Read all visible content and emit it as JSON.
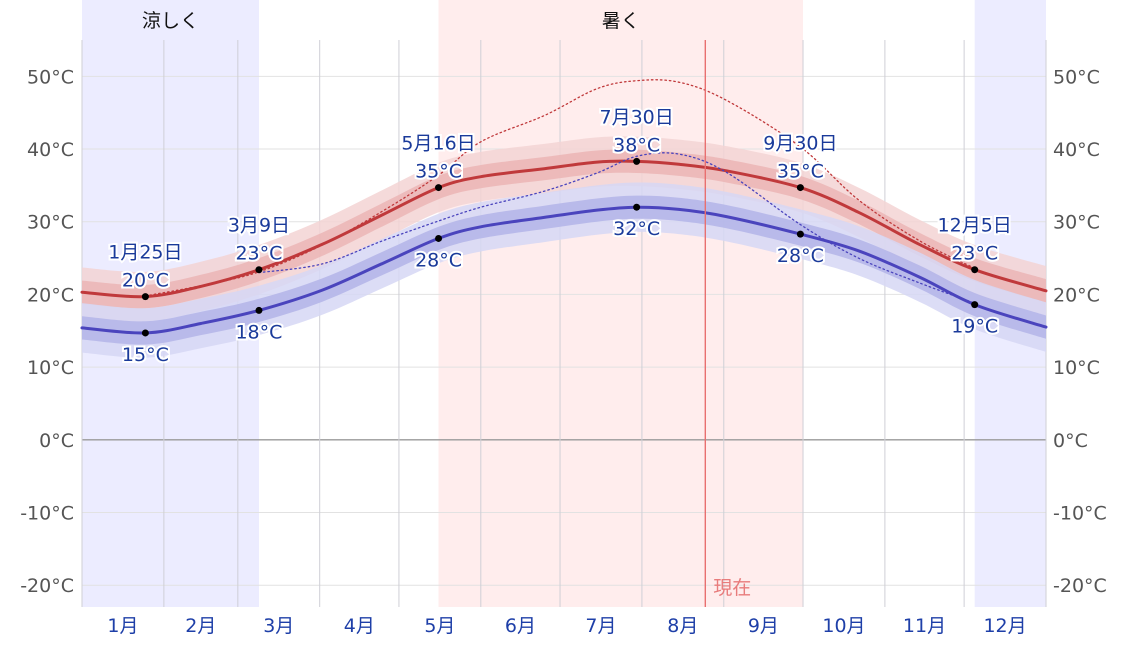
{
  "chart_data": {
    "type": "line",
    "x_unit": "day_of_year",
    "ylim": [
      -23,
      55
    ],
    "y_ticks": [
      -20,
      -10,
      0,
      10,
      20,
      30,
      40,
      50
    ],
    "y_tick_suffix": "°C",
    "months": [
      "1月",
      "2月",
      "3月",
      "4月",
      "5月",
      "6月",
      "7月",
      "8月",
      "9月",
      "10月",
      "11月",
      "12月"
    ],
    "seasons": [
      {
        "label": "涼しく",
        "start": 1,
        "end": 68,
        "color": "#ececff"
      },
      {
        "label": "",
        "start": 339,
        "end": 366,
        "color": "#ececff"
      },
      {
        "label": "暑く",
        "start": 136,
        "end": 274,
        "color": "#ffeded"
      }
    ],
    "now": {
      "label": "現在",
      "x": 237,
      "color": "#e87070"
    },
    "series": [
      {
        "name": "high",
        "color": "#c0393b",
        "band_inner": "#ebb5b5",
        "band_outer": "#f3d3d3",
        "x": [
          1,
          25,
          46,
          68,
          92,
          115,
          136,
          152,
          176,
          196,
          211,
          227,
          245,
          273,
          295,
          318,
          339,
          366
        ],
        "values": [
          20.3,
          19.7,
          21.1,
          23.4,
          26.9,
          31.0,
          34.7,
          36.2,
          37.3,
          38.2,
          38.3,
          37.9,
          37.0,
          34.7,
          31.3,
          26.9,
          23.4,
          20.5
        ]
      },
      {
        "name": "low",
        "color": "#4a44bd",
        "band_inner": "#b3b4e8",
        "band_outer": "#d6d7f4",
        "x": [
          1,
          25,
          46,
          68,
          92,
          115,
          136,
          152,
          176,
          196,
          211,
          227,
          245,
          273,
          295,
          318,
          339,
          366
        ],
        "values": [
          15.4,
          14.7,
          16.0,
          17.8,
          20.6,
          24.3,
          27.7,
          29.3,
          30.6,
          31.6,
          32.0,
          31.7,
          30.7,
          28.3,
          26.0,
          22.4,
          18.6,
          15.5
        ]
      },
      {
        "name": "record_high",
        "color": "#c0393b",
        "dotted": true,
        "x": [
          25,
          46,
          68,
          92,
          115,
          136,
          152,
          176,
          196,
          211,
          227,
          245,
          273,
          295,
          318,
          339
        ],
        "values": [
          19.8,
          21.2,
          23.1,
          26.8,
          31.5,
          36.4,
          41.0,
          44.6,
          48.3,
          49.4,
          49.2,
          46.7,
          40.3,
          33.0,
          27.4,
          23.6
        ]
      },
      {
        "name": "record_low",
        "color": "#4a44bd",
        "dotted": true,
        "x": [
          68,
          92,
          115,
          136,
          152,
          176,
          196,
          211,
          227,
          245,
          273,
          295,
          318,
          339
        ],
        "values": [
          23.0,
          24.2,
          27.4,
          30.1,
          32.0,
          34.2,
          36.7,
          39.0,
          39.3,
          36.8,
          29.6,
          25.0,
          21.6,
          18.8
        ]
      }
    ],
    "annotations": [
      {
        "x": 25,
        "y": 19.7,
        "lines": [
          "1月25日",
          "20°C"
        ],
        "pos": "above"
      },
      {
        "x": 25,
        "y": 14.7,
        "lines": [
          "15°C"
        ],
        "pos": "below"
      },
      {
        "x": 68,
        "y": 23.4,
        "lines": [
          "3月9日",
          "23°C"
        ],
        "pos": "above"
      },
      {
        "x": 68,
        "y": 17.8,
        "lines": [
          "18°C"
        ],
        "pos": "below"
      },
      {
        "x": 136,
        "y": 34.7,
        "lines": [
          "5月16日",
          "35°C"
        ],
        "pos": "above"
      },
      {
        "x": 136,
        "y": 27.7,
        "lines": [
          "28°C"
        ],
        "pos": "below"
      },
      {
        "x": 211,
        "y": 38.3,
        "lines": [
          "7月30日",
          "38°C"
        ],
        "pos": "above"
      },
      {
        "x": 211,
        "y": 32.0,
        "lines": [
          "32°C"
        ],
        "pos": "below"
      },
      {
        "x": 273,
        "y": 34.7,
        "lines": [
          "9月30日",
          "35°C"
        ],
        "pos": "above"
      },
      {
        "x": 273,
        "y": 28.3,
        "lines": [
          "28°C"
        ],
        "pos": "below"
      },
      {
        "x": 339,
        "y": 23.4,
        "lines": [
          "12月5日",
          "23°C"
        ],
        "pos": "above"
      },
      {
        "x": 339,
        "y": 18.6,
        "lines": [
          "19°C"
        ],
        "pos": "below"
      }
    ]
  }
}
